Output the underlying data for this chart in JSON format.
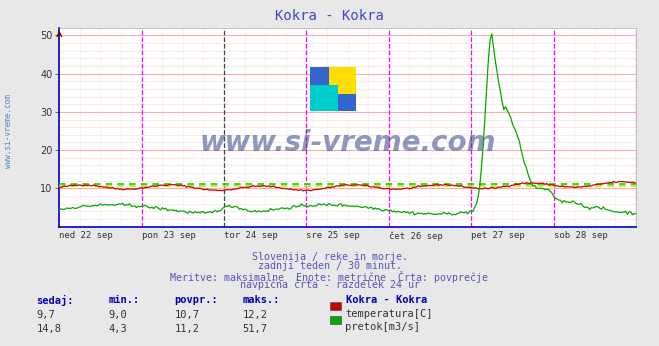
{
  "title": "Kokra - Kokra",
  "title_color": "#4444cc",
  "bg_color": "#e8e8e8",
  "plot_bg_color": "#ffffff",
  "xlim": [
    0,
    336
  ],
  "ylim": [
    0,
    52
  ],
  "yticks": [
    10,
    20,
    30,
    40,
    50
  ],
  "day_labels": [
    "ned 22 sep",
    "pon 23 sep",
    "tor 24 sep",
    "sre 25 sep",
    "čet 26 sep",
    "pet 27 sep",
    "sob 28 sep"
  ],
  "day_positions": [
    0,
    48,
    96,
    144,
    192,
    240,
    288
  ],
  "magenta_vlines": [
    48,
    144,
    192,
    240,
    288,
    336
  ],
  "black_vlines": [
    96
  ],
  "hgrid_major_color": "#ffaaaa",
  "hgrid_minor_color": "#ffdddd",
  "vgrid_color": "#cccccc",
  "temp_color": "#cc0000",
  "flow_color": "#00aa00",
  "avg_temp_color": "#dddd00",
  "avg_flow_color": "#00dd00",
  "avg_temp_val": 10.7,
  "avg_flow_val": 11.2,
  "watermark_text": "www.si-vreme.com",
  "watermark_color": "#334488",
  "footer_lines": [
    "Slovenija / reke in morje.",
    "zadnji teden / 30 minut.",
    "Meritve: maksimalne  Enote: metrične  Črta: povprečje",
    "navpična črta - razdelek 24 ur"
  ],
  "footer_color": "#5555bb",
  "legend_title": "Kokra - Kokra",
  "legend_items": [
    {
      "label": "temperatura[C]",
      "color": "#cc0000"
    },
    {
      "label": "pretok[m3/s]",
      "color": "#00aa00"
    }
  ],
  "stats_headers": [
    "sedaj:",
    "min.:",
    "povpr.:",
    "maks.:"
  ],
  "stats_temp": [
    "9,7",
    "9,0",
    "10,7",
    "12,2"
  ],
  "stats_flow": [
    "14,8",
    "4,3",
    "11,2",
    "51,7"
  ],
  "ylabel_text": "www.si-vreme.com",
  "ylabel_color": "#4477cc",
  "spine_color": "#0000cc",
  "arrow_color": "#880000",
  "left_spine_color": "#0000cc"
}
